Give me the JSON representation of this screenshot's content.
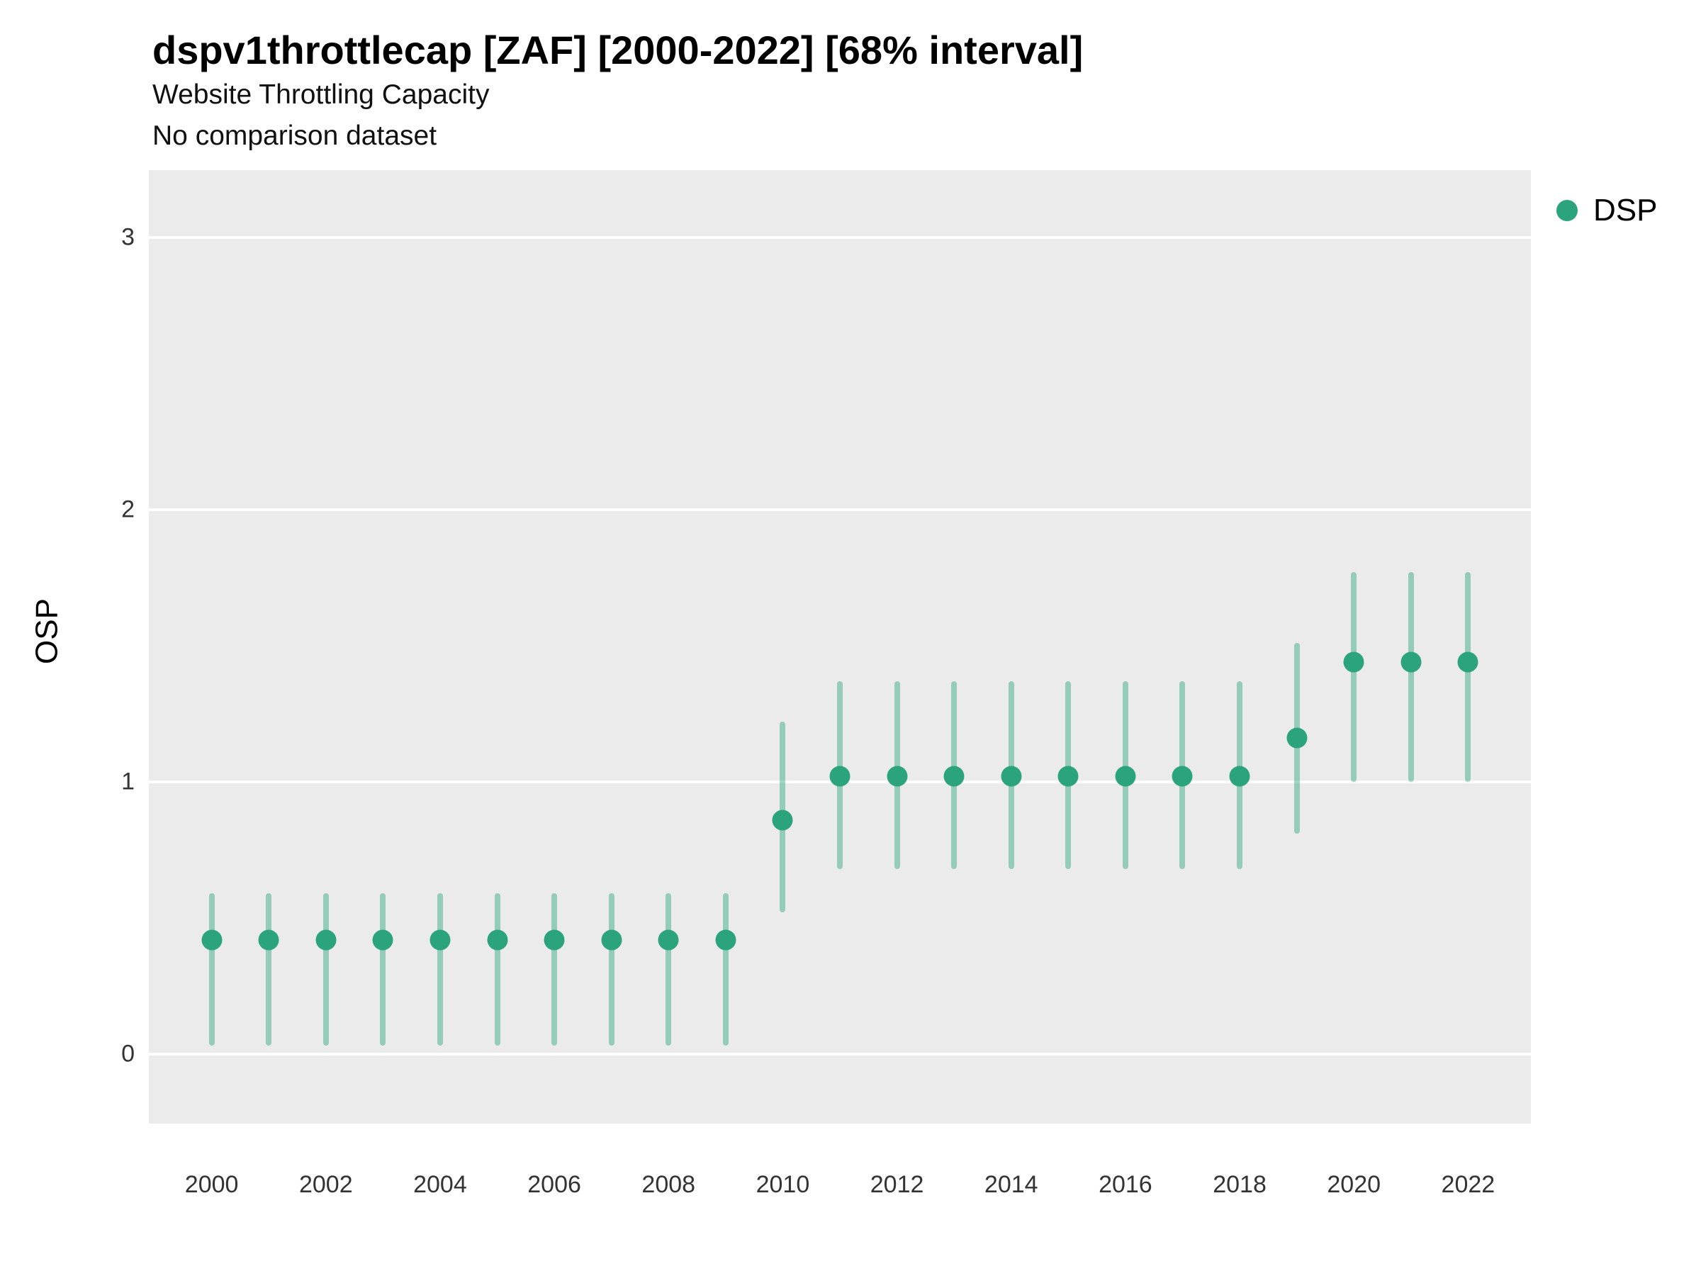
{
  "header": {
    "title": "dspv1throttlecap [ZAF] [2000-2022] [68% interval]",
    "subtitle": "Website Throttling Capacity",
    "note": "No comparison dataset"
  },
  "legend": {
    "label": "DSP"
  },
  "axes": {
    "y_label": "OSP",
    "y_ticks": [
      0,
      1,
      2,
      3
    ],
    "x_ticks": [
      2000,
      2002,
      2004,
      2006,
      2008,
      2010,
      2012,
      2014,
      2016,
      2018,
      2020,
      2022
    ]
  },
  "colors": {
    "point": "#2BA47D",
    "range": "rgba(43, 164, 125, 0.45)",
    "panel": "#EBEBEB",
    "grid": "#FFFFFF"
  },
  "chart_data": {
    "type": "pointrange",
    "title": "dspv1throttlecap [ZAF] [2000-2022] [68% interval]",
    "subtitle": "Website Throttling Capacity",
    "note": "No comparison dataset",
    "xlabel": "",
    "ylabel": "OSP",
    "ylim": [
      -0.255,
      3.246
    ],
    "xlim": [
      1998.9,
      2023.1
    ],
    "grid": true,
    "legend_position": "right",
    "interval": "68%",
    "x": [
      2000,
      2001,
      2002,
      2003,
      2004,
      2005,
      2006,
      2007,
      2008,
      2009,
      2010,
      2011,
      2012,
      2013,
      2014,
      2015,
      2016,
      2017,
      2018,
      2019,
      2020,
      2021,
      2022
    ],
    "series": [
      {
        "name": "DSP",
        "values": [
          0.42,
          0.42,
          0.42,
          0.42,
          0.42,
          0.42,
          0.42,
          0.42,
          0.42,
          0.42,
          0.86,
          1.02,
          1.02,
          1.02,
          1.02,
          1.02,
          1.02,
          1.02,
          1.02,
          1.16,
          1.44,
          1.44,
          1.44
        ],
        "lower": [
          0.03,
          0.03,
          0.03,
          0.03,
          0.03,
          0.03,
          0.03,
          0.03,
          0.03,
          0.03,
          0.52,
          0.68,
          0.68,
          0.68,
          0.68,
          0.68,
          0.68,
          0.68,
          0.68,
          0.81,
          1.0,
          1.0,
          1.0
        ],
        "upper": [
          0.59,
          0.59,
          0.59,
          0.59,
          0.59,
          0.59,
          0.59,
          0.59,
          0.59,
          0.59,
          1.22,
          1.37,
          1.37,
          1.37,
          1.37,
          1.37,
          1.37,
          1.37,
          1.37,
          1.51,
          1.77,
          1.77,
          1.77
        ]
      }
    ]
  }
}
